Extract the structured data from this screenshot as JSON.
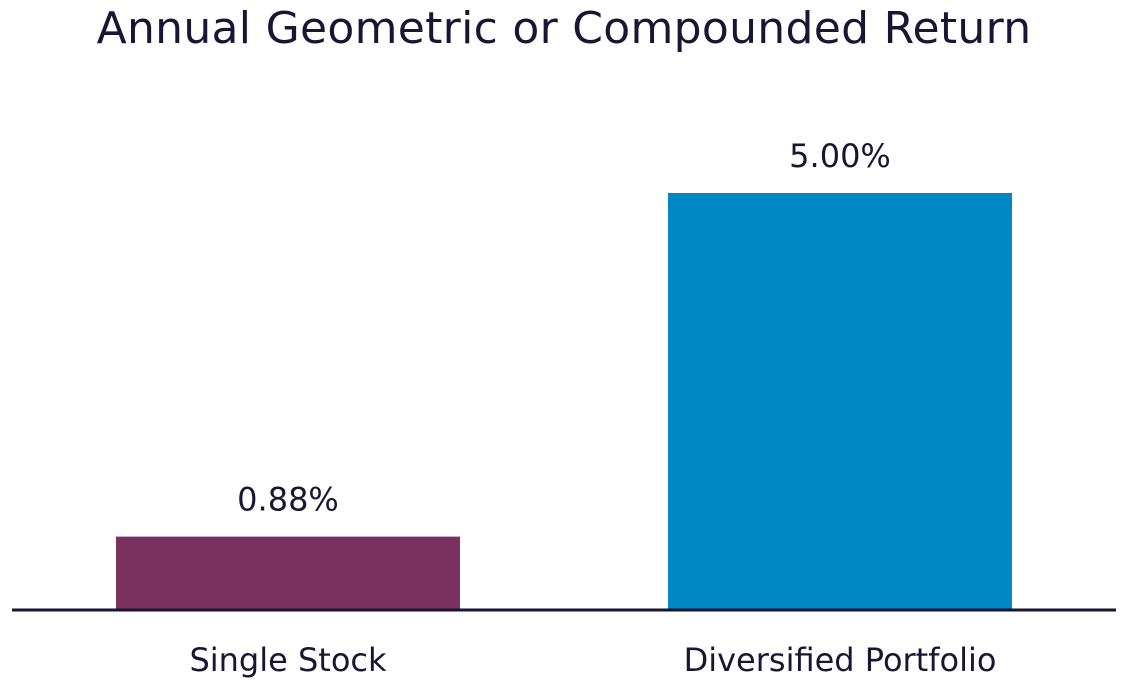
{
  "chart_data": {
    "type": "bar",
    "title": "Annual Geometric or Compounded Return",
    "categories": [
      "Single Stock",
      "Diversified Portfolio"
    ],
    "values": [
      0.88,
      5.0
    ],
    "value_labels": [
      "0.88%",
      "5.00%"
    ],
    "colors": [
      "#7a315f",
      "#0088c5"
    ],
    "ylim": [
      0,
      5.0
    ],
    "grid": false,
    "legend": "none",
    "xlabel": "",
    "ylabel": ""
  }
}
